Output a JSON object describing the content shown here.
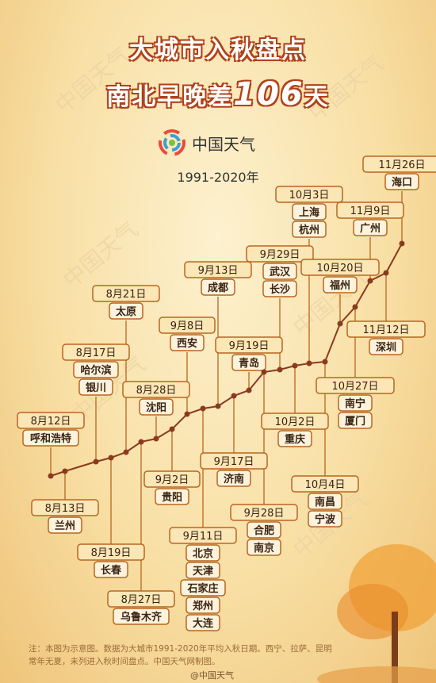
{
  "header": {
    "title_line1": "大城市入秋盘点",
    "title_line2_pre": "南北早晚差",
    "title_line2_num": "106",
    "title_line2_post": "天",
    "brand": "中国天气",
    "period": "1991-2020年"
  },
  "watermark": "中国天气",
  "footer": {
    "note_line1": "注：本图为示意图。数据为大城市1991-2020年平均入秋日期。西宁、拉萨、昆明",
    "note_line2": "常年无夏，未列进入秋时间盘点。中国天气网制图。",
    "weibo": "@中国天气"
  },
  "colors": {
    "accent": "#b0421a",
    "label_border": "#b9661f",
    "line": "#8a3a1e"
  },
  "chart_data": {
    "type": "line",
    "title": "大城市入秋盘点",
    "xlabel": "",
    "ylabel": "",
    "points": [
      {
        "date": "8月12日",
        "cities": [
          "呼和浩特"
        ]
      },
      {
        "date": "8月13日",
        "cities": [
          "兰州"
        ]
      },
      {
        "date": "8月17日",
        "cities": [
          "哈尔滨",
          "银川"
        ]
      },
      {
        "date": "8月19日",
        "cities": [
          "长春"
        ]
      },
      {
        "date": "8月21日",
        "cities": [
          "太原"
        ]
      },
      {
        "date": "8月27日",
        "cities": [
          "乌鲁木齐"
        ]
      },
      {
        "date": "8月28日",
        "cities": [
          "沈阳"
        ]
      },
      {
        "date": "9月2日",
        "cities": [
          "贵阳"
        ]
      },
      {
        "date": "9月8日",
        "cities": [
          "西安"
        ]
      },
      {
        "date": "9月11日",
        "cities": [
          "北京",
          "天津",
          "石家庄",
          "郑州",
          "大连"
        ]
      },
      {
        "date": "9月13日",
        "cities": [
          "成都"
        ]
      },
      {
        "date": "9月17日",
        "cities": [
          "济南"
        ]
      },
      {
        "date": "9月19日",
        "cities": [
          "青岛"
        ]
      },
      {
        "date": "9月28日",
        "cities": [
          "合肥",
          "南京"
        ]
      },
      {
        "date": "9月29日",
        "cities": [
          "武汉",
          "长沙"
        ]
      },
      {
        "date": "10月2日",
        "cities": [
          "重庆"
        ]
      },
      {
        "date": "10月3日",
        "cities": [
          "上海",
          "杭州"
        ]
      },
      {
        "date": "10月4日",
        "cities": [
          "南昌",
          "宁波"
        ]
      },
      {
        "date": "10月20日",
        "cities": [
          "福州"
        ]
      },
      {
        "date": "10月27日",
        "cities": [
          "南宁",
          "厦门"
        ]
      },
      {
        "date": "11月9日",
        "cities": [
          "广州"
        ]
      },
      {
        "date": "11月12日",
        "cities": [
          "深圳"
        ]
      },
      {
        "date": "11月26日",
        "cities": [
          "海口"
        ]
      }
    ]
  }
}
